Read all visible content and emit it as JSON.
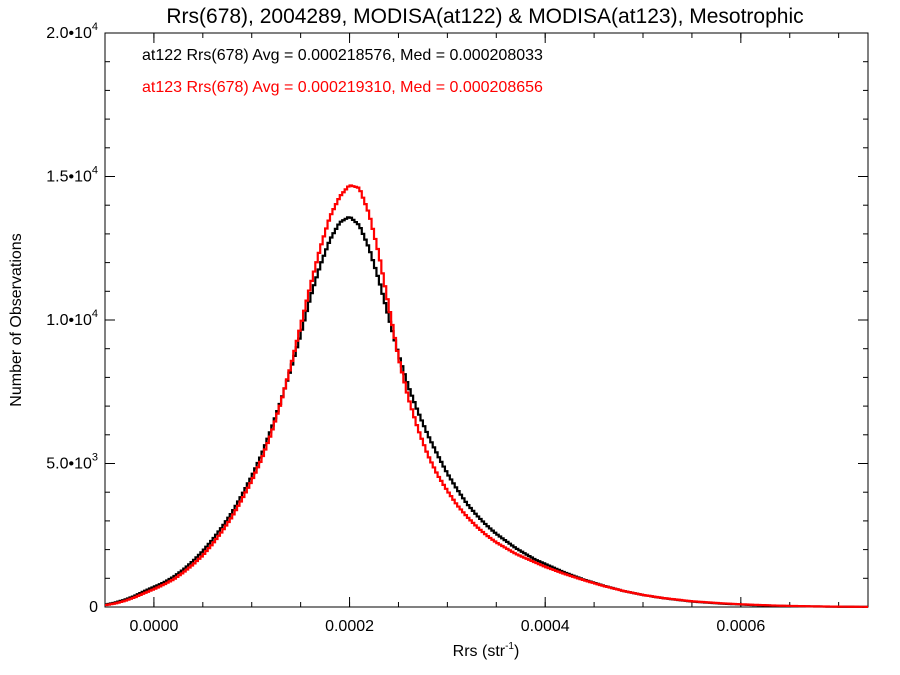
{
  "chart_data": {
    "type": "line",
    "title": "Rrs(678), 2004289, MODISA(at122) & MODISA(at123), Mesotrophic",
    "xlabel": "Rrs (str",
    "xlabel_sup": "-1",
    "xlabel_close": ")",
    "ylabel": "Number of Observations",
    "xlim": [
      -5e-05,
      0.00073
    ],
    "ylim": [
      0,
      20000
    ],
    "x_ticks": [
      {
        "value": 0.0,
        "label": "0.0000"
      },
      {
        "value": 0.0002,
        "label": "0.0002"
      },
      {
        "value": 0.0004,
        "label": "0.0004"
      },
      {
        "value": 0.0006,
        "label": "0.0006"
      }
    ],
    "y_ticks": [
      {
        "value": 0,
        "mant": "0",
        "exp": ""
      },
      {
        "value": 5000,
        "mant": "5.0•10",
        "exp": "3"
      },
      {
        "value": 10000,
        "mant": "1.0•10",
        "exp": "4"
      },
      {
        "value": 15000,
        "mant": "1.5•10",
        "exp": "4"
      },
      {
        "value": 20000,
        "mant": "2.0•10",
        "exp": "4"
      }
    ],
    "grid": false,
    "annotations": [
      {
        "text": "at122 Rrs(678) Avg = 0.000218576, Med = 0.000208033",
        "color": "#000000"
      },
      {
        "text": "at123 Rrs(678) Avg = 0.000219310, Med = 0.000208656",
        "color": "#ff0000"
      }
    ],
    "series": [
      {
        "color": "#000000",
        "x": [
          -5e-05,
          -4e-05,
          -3e-05,
          -2e-05,
          -1e-05,
          0.0,
          1e-05,
          2e-05,
          3e-05,
          4e-05,
          5e-05,
          6e-05,
          7e-05,
          8e-05,
          9e-05,
          0.0001,
          0.00011,
          0.00012,
          0.00013,
          0.00014,
          0.00015,
          0.00016,
          0.00017,
          0.00018,
          0.00019,
          0.0002,
          0.00021,
          0.00022,
          0.00023,
          0.00024,
          0.00025,
          0.00026,
          0.00027,
          0.00028,
          0.00029,
          0.0003,
          0.00031,
          0.00032,
          0.00033,
          0.00034,
          0.00035,
          0.00036,
          0.00037,
          0.00038,
          0.00039,
          0.0004,
          0.00042,
          0.00044,
          0.00046,
          0.00048,
          0.0005,
          0.00052,
          0.00055,
          0.00058,
          0.00061,
          0.00064,
          0.00067,
          0.0007,
          0.00073
        ],
        "y": [
          80,
          150,
          250,
          380,
          550,
          700,
          850,
          1050,
          1300,
          1600,
          1950,
          2350,
          2800,
          3300,
          3900,
          4550,
          5300,
          6200,
          7200,
          8300,
          9500,
          10800,
          11900,
          12800,
          13400,
          13600,
          13300,
          12500,
          11400,
          10100,
          8800,
          7700,
          6800,
          6000,
          5300,
          4650,
          4100,
          3600,
          3200,
          2850,
          2550,
          2300,
          2050,
          1850,
          1650,
          1500,
          1200,
          950,
          740,
          560,
          420,
          310,
          190,
          120,
          70,
          40,
          20,
          10,
          5
        ]
      },
      {
        "color": "#ff0000",
        "x": [
          -5e-05,
          -4e-05,
          -3e-05,
          -2e-05,
          -1e-05,
          0.0,
          1e-05,
          2e-05,
          3e-05,
          4e-05,
          5e-05,
          6e-05,
          7e-05,
          8e-05,
          9e-05,
          0.0001,
          0.00011,
          0.00012,
          0.00013,
          0.00014,
          0.00015,
          0.00016,
          0.00017,
          0.00018,
          0.00019,
          0.0002,
          0.00021,
          0.00022,
          0.00023,
          0.00024,
          0.00025,
          0.00026,
          0.00027,
          0.00028,
          0.00029,
          0.0003,
          0.00031,
          0.00032,
          0.00033,
          0.00034,
          0.00035,
          0.00036,
          0.00037,
          0.00038,
          0.00039,
          0.0004,
          0.00042,
          0.00044,
          0.00046,
          0.00048,
          0.0005,
          0.00052,
          0.00055,
          0.00058,
          0.00061,
          0.00064,
          0.00067,
          0.0007,
          0.00073
        ],
        "y": [
          60,
          120,
          210,
          330,
          480,
          620,
          780,
          960,
          1200,
          1480,
          1800,
          2200,
          2650,
          3150,
          3750,
          4400,
          5150,
          6050,
          7150,
          8400,
          9800,
          11200,
          12500,
          13600,
          14300,
          14700,
          14600,
          13700,
          12300,
          10500,
          8700,
          7300,
          6200,
          5300,
          4600,
          4050,
          3550,
          3150,
          2800,
          2500,
          2250,
          2050,
          1850,
          1700,
          1550,
          1400,
          1150,
          930,
          730,
          560,
          420,
          315,
          200,
          130,
          80,
          45,
          25,
          12,
          5
        ]
      }
    ]
  }
}
